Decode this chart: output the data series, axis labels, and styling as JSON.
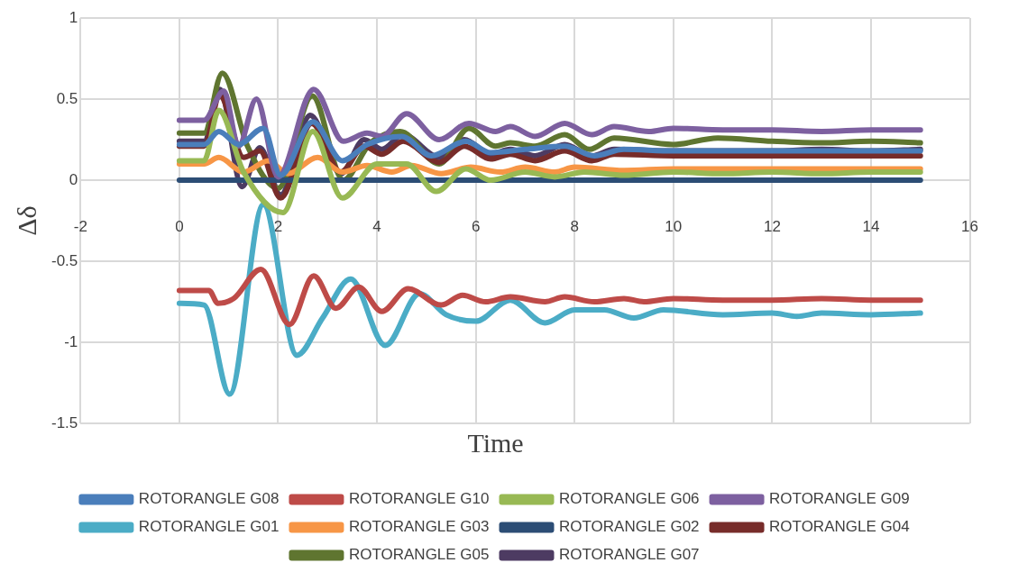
{
  "chart_data": {
    "type": "line",
    "xlabel": "Time",
    "ylabel": "Δδ",
    "xlim": [
      -2,
      16
    ],
    "xticks": [
      -2,
      0,
      2,
      4,
      6,
      8,
      10,
      12,
      14,
      16
    ],
    "ylim": [
      -1.5,
      1
    ],
    "yticks": [
      -1.5,
      -1,
      -0.5,
      0,
      0.5,
      1
    ],
    "grid": true,
    "legend": "bottom",
    "marker": "none",
    "line_style": "solid",
    "series": [
      {
        "name": "ROTORANGLE G08",
        "color": "#4a7ebb",
        "x": [
          0,
          0.5,
          0.8,
          1.2,
          1.7,
          2.05,
          2.7,
          3.3,
          3.8,
          4.5,
          5.1,
          5.8,
          6.3,
          7,
          7.8,
          8.4,
          9,
          10,
          11,
          12,
          13,
          14,
          15
        ],
        "values": [
          0.22,
          0.22,
          0.3,
          0.22,
          0.32,
          0.03,
          0.36,
          0.12,
          0.22,
          0.27,
          0.15,
          0.24,
          0.17,
          0.19,
          0.21,
          0.15,
          0.19,
          0.18,
          0.18,
          0.18,
          0.18,
          0.18,
          0.18
        ]
      },
      {
        "name": "ROTORANGLE G10",
        "color": "#be4b48",
        "x": [
          0,
          0.6,
          0.78,
          1.1,
          1.65,
          2.23,
          2.72,
          3.17,
          3.63,
          4.1,
          4.63,
          5.3,
          5.73,
          6.2,
          6.7,
          7.4,
          7.8,
          8.4,
          9,
          9.4,
          10,
          11,
          12,
          13,
          14,
          15
        ],
        "values": [
          -0.68,
          -0.68,
          -0.76,
          -0.73,
          -0.55,
          -0.89,
          -0.59,
          -0.79,
          -0.66,
          -0.81,
          -0.67,
          -0.77,
          -0.71,
          -0.75,
          -0.72,
          -0.75,
          -0.72,
          -0.75,
          -0.73,
          -0.75,
          -0.73,
          -0.74,
          -0.74,
          -0.73,
          -0.74,
          -0.74
        ]
      },
      {
        "name": "ROTORANGLE G06",
        "color": "#98b954",
        "x": [
          0,
          0.5,
          0.8,
          1.3,
          2.1,
          2.7,
          3.3,
          4,
          4.6,
          5.2,
          5.8,
          6.3,
          7,
          7.6,
          8.2,
          9,
          10,
          11,
          12,
          13,
          14,
          15
        ],
        "values": [
          0.12,
          0.12,
          0.43,
          0.05,
          -0.2,
          0.3,
          -0.11,
          0.1,
          0.1,
          -0.07,
          0.07,
          0,
          0.05,
          0.02,
          0.05,
          0.03,
          0.05,
          0.04,
          0.05,
          0.04,
          0.05,
          0.05
        ]
      },
      {
        "name": "ROTORANGLE G09",
        "color": "#7d60a0",
        "x": [
          0,
          0.5,
          0.9,
          1.2,
          1.56,
          2,
          2.72,
          3.32,
          3.8,
          4.1,
          4.6,
          5.26,
          5.86,
          6.4,
          6.7,
          7.2,
          7.8,
          8.35,
          8.8,
          9.5,
          10,
          11,
          12,
          13,
          14,
          15
        ],
        "values": [
          0.37,
          0.37,
          0.55,
          0.21,
          0.5,
          0.02,
          0.56,
          0.24,
          0.29,
          0.27,
          0.41,
          0.25,
          0.35,
          0.3,
          0.33,
          0.27,
          0.35,
          0.28,
          0.33,
          0.3,
          0.32,
          0.31,
          0.31,
          0.3,
          0.31,
          0.31
        ]
      },
      {
        "name": "ROTORANGLE G01",
        "color": "#4bacc6",
        "x": [
          0,
          0.5,
          1.02,
          1.7,
          2.38,
          2.9,
          3.47,
          4.17,
          4.86,
          5.4,
          6,
          6.7,
          7.4,
          8,
          8.6,
          9.2,
          9.8,
          11,
          12,
          12.5,
          13,
          14,
          15
        ],
        "values": [
          -0.76,
          -0.77,
          -1.32,
          -0.15,
          -1.08,
          -0.85,
          -0.61,
          -1.02,
          -0.7,
          -0.83,
          -0.87,
          -0.74,
          -0.88,
          -0.8,
          -0.8,
          -0.85,
          -0.8,
          -0.83,
          -0.82,
          -0.84,
          -0.82,
          -0.83,
          -0.82
        ]
      },
      {
        "name": "ROTORANGLE G03",
        "color": "#f79646",
        "x": [
          0,
          0.5,
          0.8,
          1.3,
          1.8,
          2.2,
          2.8,
          3.3,
          3.8,
          4.3,
          4.7,
          5.3,
          5.9,
          6.5,
          7,
          7.6,
          8,
          9,
          10,
          11,
          12,
          13,
          14,
          15
        ],
        "values": [
          0.1,
          0.1,
          0.14,
          0.05,
          0.12,
          0.04,
          0.14,
          0.05,
          0.09,
          0.05,
          0.09,
          0.04,
          0.08,
          0.05,
          0.08,
          0.05,
          0.08,
          0.06,
          0.07,
          0.07,
          0.07,
          0.07,
          0.07,
          0.07
        ]
      },
      {
        "name": "ROTORANGLE G02",
        "color": "#2c4d75",
        "x": [
          0,
          15
        ],
        "values": [
          0,
          0
        ]
      },
      {
        "name": "ROTORANGLE G04",
        "color": "#772c2a",
        "x": [
          0,
          0.5,
          0.82,
          1.3,
          1.63,
          2.05,
          2.68,
          3.27,
          3.74,
          4.1,
          4.53,
          5.26,
          5.77,
          6.3,
          6.7,
          7.2,
          7.8,
          8.35,
          8.8,
          10,
          11,
          12,
          13,
          14,
          15
        ],
        "values": [
          0.21,
          0.21,
          0.52,
          0.14,
          0.18,
          -0.11,
          0.35,
          0.05,
          0.21,
          0.16,
          0.24,
          0.11,
          0.21,
          0.13,
          0.16,
          0.12,
          0.18,
          0.12,
          0.16,
          0.15,
          0.15,
          0.15,
          0.15,
          0.15,
          0.15
        ]
      },
      {
        "name": "ROTORANGLE G05",
        "color": "#5f7530",
        "x": [
          0,
          0.5,
          0.87,
          1.38,
          2,
          2.69,
          3.32,
          3.87,
          4.47,
          5.26,
          5.86,
          6.4,
          6.7,
          7.2,
          7.8,
          8.3,
          8.8,
          10,
          10.9,
          12,
          13,
          14,
          15
        ],
        "values": [
          0.29,
          0.29,
          0.66,
          0.21,
          -0.05,
          0.52,
          0,
          0.23,
          0.3,
          0.1,
          0.32,
          0.21,
          0.23,
          0.21,
          0.28,
          0.19,
          0.26,
          0.22,
          0.26,
          0.24,
          0.23,
          0.24,
          0.23
        ]
      },
      {
        "name": "ROTORANGLE G07",
        "color": "#4d3b62",
        "x": [
          0,
          0.5,
          0.82,
          1.27,
          1.63,
          2.05,
          2.65,
          3.27,
          3.74,
          4.1,
          4.53,
          5.26,
          5.77,
          6.3,
          6.7,
          7.2,
          7.8,
          8.35,
          8.8,
          10,
          11,
          12,
          13,
          14,
          15
        ],
        "values": [
          0.24,
          0.24,
          0.56,
          -0.04,
          0.2,
          -0.09,
          0.4,
          0.04,
          0.25,
          0.19,
          0.28,
          0.14,
          0.25,
          0.16,
          0.19,
          0.15,
          0.22,
          0.15,
          0.19,
          0.18,
          0.18,
          0.18,
          0.19,
          0.18,
          0.19
        ]
      }
    ]
  }
}
